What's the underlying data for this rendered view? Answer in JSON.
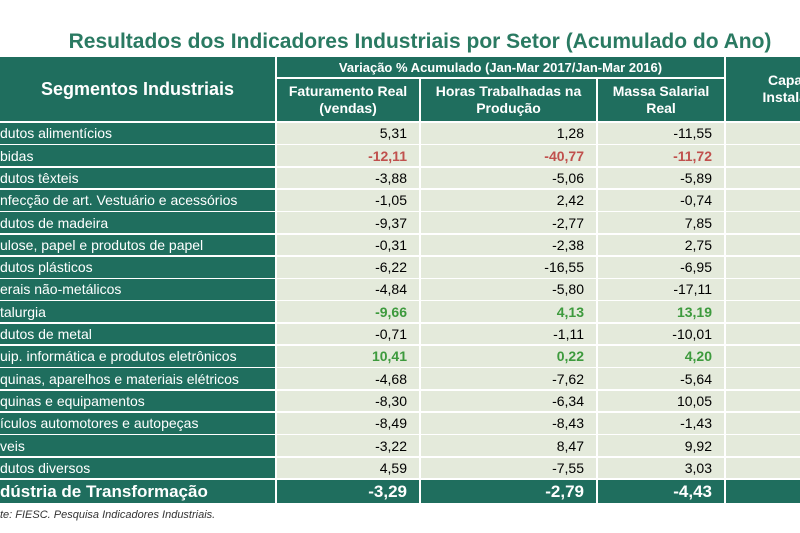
{
  "title": "Resultados dos Indicadores Industriais por Setor (Acumulado do Ano)",
  "table": {
    "header": {
      "segment": "Segmentos Industriais",
      "group": "Variação % Acumulado (Jan-Mar 2017/Jan-Mar 2016)",
      "columns": [
        "Faturamento Real (vendas)",
        "Horas Trabalhadas na Produção",
        "Massa Salarial Real"
      ],
      "extra": "Capac Instalad"
    },
    "rows": [
      {
        "label": "dutos alimentícios",
        "values": [
          "5,31",
          "1,28",
          "-11,55"
        ]
      },
      {
        "label": "bidas",
        "values": [
          "-12,11",
          "-40,77",
          "-11,72"
        ],
        "color": "#c0504d"
      },
      {
        "label": "dutos têxteis",
        "values": [
          "-3,88",
          "-5,06",
          "-5,89"
        ]
      },
      {
        "label": "nfecção de art. Vestuário e acessórios",
        "values": [
          "-1,05",
          "2,42",
          "-0,74"
        ]
      },
      {
        "label": "dutos de madeira",
        "values": [
          "-9,37",
          "-2,77",
          "7,85"
        ]
      },
      {
        "label": "ulose, papel e produtos de papel",
        "values": [
          "-0,31",
          "-2,38",
          "2,75"
        ]
      },
      {
        "label": "dutos plásticos",
        "values": [
          "-6,22",
          "-16,55",
          "-6,95"
        ]
      },
      {
        "label": "erais não-metálicos",
        "values": [
          "-4,84",
          "-5,80",
          "-17,11"
        ]
      },
      {
        "label": "talurgia",
        "values": [
          "-9,66",
          "4,13",
          "13,19"
        ],
        "color": "#3d9a3d"
      },
      {
        "label": "dutos de metal",
        "values": [
          "-0,71",
          "-1,11",
          "-10,01"
        ]
      },
      {
        "label": "uip. informática e produtos eletrônicos",
        "values": [
          "10,41",
          "0,22",
          "4,20"
        ],
        "color": "#3d9a3d"
      },
      {
        "label": "quinas, aparelhos e materiais elétricos",
        "values": [
          "-4,68",
          "-7,62",
          "-5,64"
        ]
      },
      {
        "label": "quinas e equipamentos",
        "values": [
          "-8,30",
          "-6,34",
          "10,05"
        ]
      },
      {
        "label": "ículos automotores e autopeças",
        "values": [
          "-8,49",
          "-8,43",
          "-1,43"
        ]
      },
      {
        "label": "veis",
        "values": [
          "-3,22",
          "8,47",
          "9,92"
        ]
      },
      {
        "label": "dutos diversos",
        "values": [
          "4,59",
          "-7,55",
          "3,03"
        ]
      }
    ],
    "total": {
      "label": "dústria de Transformação",
      "values": [
        "-3,29",
        "-2,79",
        "-4,43"
      ]
    }
  },
  "source": "te: FIESC. Pesquisa Indicadores Industriais."
}
